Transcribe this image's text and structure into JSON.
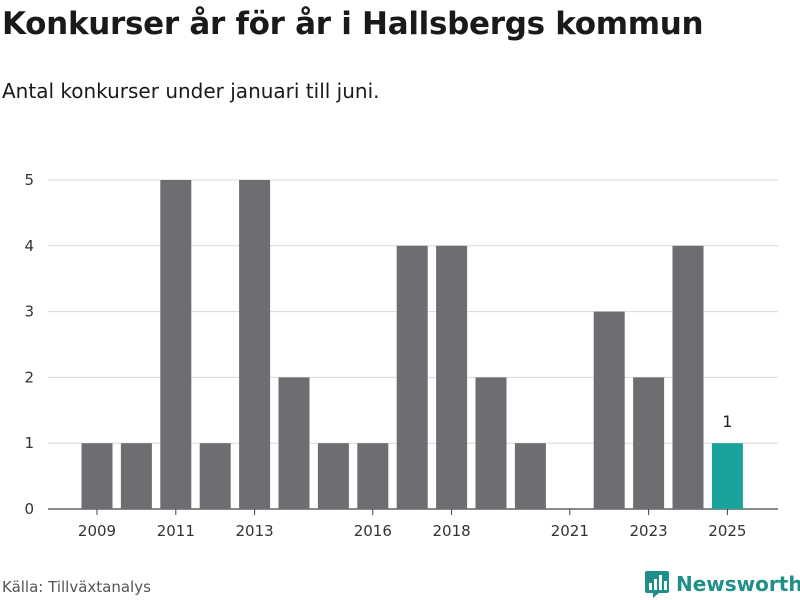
{
  "header": {
    "title": "Konkurser år för år i Hallsbergs kommun",
    "subtitle": "Antal konkurser under januari till juni."
  },
  "footer": {
    "source": "Källa: Tillväxtanalys",
    "brand": "Newsworthy"
  },
  "colors": {
    "bar": "#6d6d72",
    "highlight": "#1aa39a",
    "grid": "#d9d9d9",
    "brand": "#1f8f8a"
  },
  "icons": {
    "brand_logo": "bar-chart-badge-icon"
  },
  "chart_data": {
    "type": "bar",
    "categories": [
      2009,
      2010,
      2011,
      2012,
      2013,
      2014,
      2015,
      2016,
      2017,
      2018,
      2019,
      2020,
      2021,
      2022,
      2023,
      2024,
      2025
    ],
    "values": [
      1,
      1,
      5,
      1,
      5,
      2,
      1,
      1,
      4,
      4,
      2,
      1,
      0,
      3,
      2,
      4,
      1
    ],
    "highlight_category": 2025,
    "highlight_label": "1",
    "x_tick_labels": [
      "2009",
      "2011",
      "2013",
      "2016",
      "2018",
      "2021",
      "2023",
      "2025"
    ],
    "y_ticks": [
      0,
      1,
      2,
      3,
      4,
      5
    ],
    "ylim": [
      0,
      5
    ],
    "grid": true,
    "legend": "none"
  }
}
